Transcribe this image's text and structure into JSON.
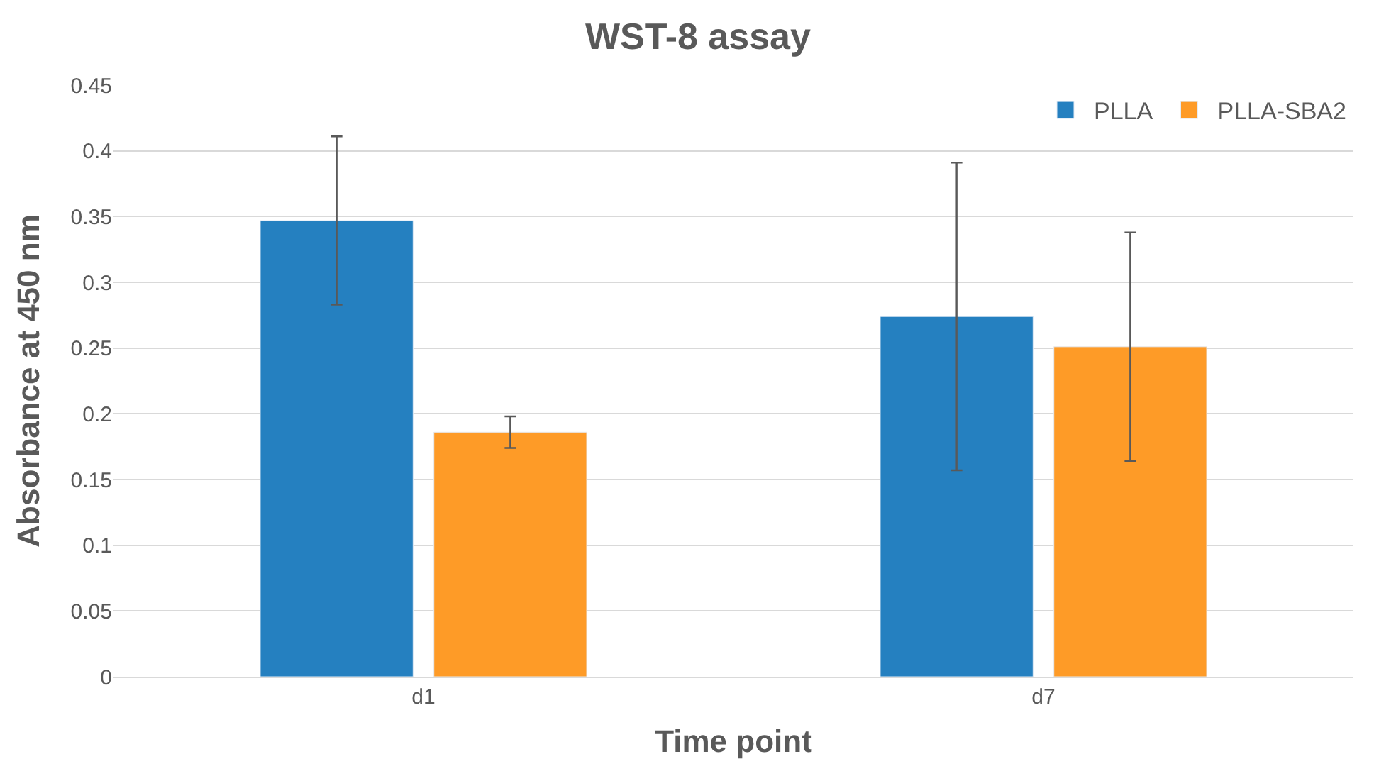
{
  "chart_data": {
    "type": "bar",
    "title": "WST-8 assay",
    "xlabel": "Time point",
    "ylabel": "Absorbance at 450 nm",
    "categories": [
      "d1",
      "d7"
    ],
    "series": [
      {
        "name": "PLLA",
        "color": "#2580c0",
        "values": [
          0.347,
          0.274
        ],
        "errors": [
          0.064,
          0.117
        ]
      },
      {
        "name": "PLLA-SBA2",
        "color": "#fe9b27",
        "values": [
          0.186,
          0.251
        ],
        "errors": [
          0.012,
          0.087
        ]
      }
    ],
    "ylim": [
      0,
      0.45
    ],
    "yticks": [
      0,
      0.05,
      0.1,
      0.15,
      0.2,
      0.25,
      0.3,
      0.35,
      0.4,
      0.45
    ],
    "grid": "y",
    "legend": "top right"
  }
}
